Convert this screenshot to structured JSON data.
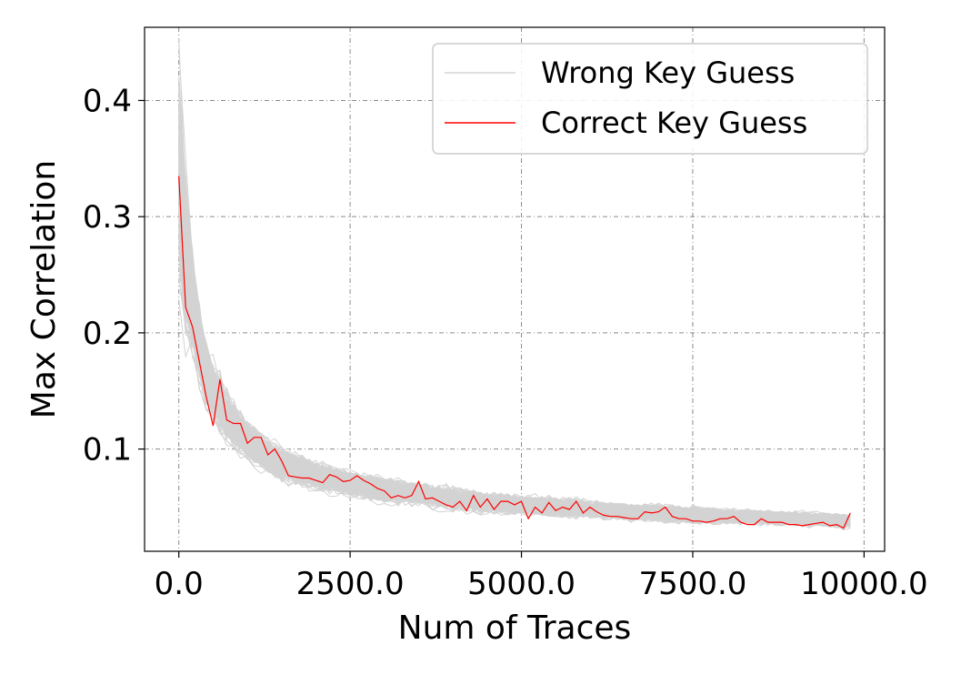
{
  "chart_data": {
    "type": "line",
    "title": "",
    "xlabel": "Num of Traces",
    "ylabel": "Max Correlation",
    "xlim": [
      -500,
      10300
    ],
    "ylim": [
      0.012,
      0.463
    ],
    "xticks": [
      0,
      2500,
      5000,
      7500,
      10000
    ],
    "xtick_labels": [
      "0.0",
      "2500.0",
      "5000.0",
      "7500.0",
      "10000.0"
    ],
    "yticks": [
      0.1,
      0.2,
      0.3,
      0.4
    ],
    "ytick_labels": [
      "0.1",
      "0.2",
      "0.3",
      "0.4"
    ],
    "grid": true,
    "legend_position": "upper-right",
    "colors": {
      "wrong": "#d3d3d3",
      "correct": "#ff0000"
    },
    "series": [
      {
        "name": "Wrong Key Guess",
        "role": "wrong",
        "count": 255,
        "x": [
          0,
          100,
          200,
          300,
          400,
          500,
          600,
          700,
          800,
          1000,
          1200,
          1500,
          2000,
          2500,
          3000,
          3500,
          4000,
          4500,
          5000,
          5500,
          6000,
          6500,
          7000,
          7500,
          8000,
          8500,
          9000,
          9500,
          9800
        ],
        "mean": [
          0.33,
          0.27,
          0.225,
          0.19,
          0.165,
          0.15,
          0.138,
          0.128,
          0.12,
          0.108,
          0.098,
          0.087,
          0.077,
          0.07,
          0.065,
          0.061,
          0.057,
          0.054,
          0.052,
          0.05,
          0.048,
          0.046,
          0.045,
          0.043,
          0.042,
          0.041,
          0.04,
          0.039,
          0.038
        ],
        "spread": [
          0.09,
          0.06,
          0.04,
          0.03,
          0.025,
          0.022,
          0.02,
          0.018,
          0.016,
          0.014,
          0.013,
          0.012,
          0.01,
          0.009,
          0.009,
          0.008,
          0.008,
          0.007,
          0.007,
          0.007,
          0.006,
          0.006,
          0.006,
          0.006,
          0.005,
          0.005,
          0.005,
          0.005,
          0.005
        ]
      },
      {
        "name": "Correct Key Guess",
        "role": "correct",
        "x": [
          0,
          100,
          200,
          300,
          400,
          500,
          600,
          700,
          800,
          900,
          1000,
          1100,
          1200,
          1300,
          1400,
          1500,
          1600,
          1700,
          1800,
          1900,
          2000,
          2100,
          2200,
          2300,
          2400,
          2500,
          2600,
          2700,
          2800,
          2900,
          3000,
          3100,
          3200,
          3300,
          3400,
          3500,
          3600,
          3700,
          3800,
          3900,
          4000,
          4100,
          4200,
          4300,
          4400,
          4500,
          4600,
          4700,
          4800,
          4900,
          5000,
          5100,
          5200,
          5300,
          5400,
          5500,
          5600,
          5700,
          5800,
          5900,
          6000,
          6100,
          6200,
          6300,
          6400,
          6500,
          6600,
          6700,
          6800,
          6900,
          7000,
          7100,
          7200,
          7300,
          7400,
          7500,
          7600,
          7700,
          7800,
          7900,
          8000,
          8100,
          8200,
          8300,
          8400,
          8500,
          8600,
          8700,
          8800,
          8900,
          9000,
          9100,
          9200,
          9300,
          9400,
          9500,
          9600,
          9700,
          9800
        ],
        "values": [
          0.335,
          0.222,
          0.205,
          0.175,
          0.145,
          0.12,
          0.16,
          0.125,
          0.122,
          0.122,
          0.105,
          0.11,
          0.11,
          0.095,
          0.1,
          0.09,
          0.077,
          0.076,
          0.075,
          0.075,
          0.073,
          0.071,
          0.078,
          0.076,
          0.072,
          0.073,
          0.077,
          0.073,
          0.07,
          0.066,
          0.064,
          0.058,
          0.06,
          0.058,
          0.06,
          0.072,
          0.057,
          0.058,
          0.055,
          0.052,
          0.05,
          0.055,
          0.047,
          0.06,
          0.05,
          0.057,
          0.048,
          0.055,
          0.055,
          0.052,
          0.055,
          0.04,
          0.05,
          0.045,
          0.054,
          0.047,
          0.05,
          0.048,
          0.055,
          0.045,
          0.05,
          0.046,
          0.043,
          0.042,
          0.042,
          0.041,
          0.04,
          0.04,
          0.046,
          0.045,
          0.046,
          0.05,
          0.042,
          0.04,
          0.04,
          0.038,
          0.038,
          0.037,
          0.038,
          0.04,
          0.04,
          0.042,
          0.037,
          0.035,
          0.035,
          0.04,
          0.037,
          0.037,
          0.037,
          0.035,
          0.035,
          0.034,
          0.035,
          0.036,
          0.037,
          0.034,
          0.035,
          0.032,
          0.045
        ]
      }
    ]
  }
}
